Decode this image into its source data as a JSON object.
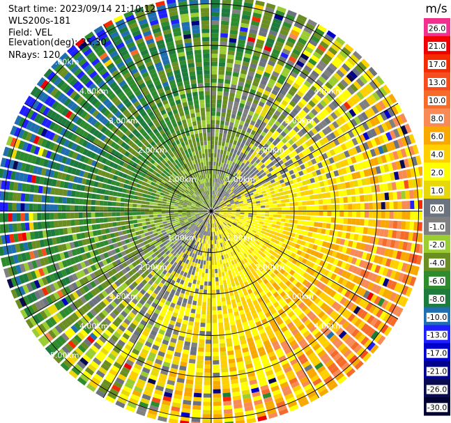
{
  "info": {
    "start_time": "Start time: 2023/09/14 21:10:12",
    "instrument": "WLS200s-181",
    "field": "Field: VEL",
    "elevation": "Elevation(deg): 35.30",
    "nrays": "NRays: 120"
  },
  "chart_data": {
    "type": "heatmap",
    "subtype": "ppi-polar",
    "field": "VEL",
    "units": "m/s",
    "nrays": 120,
    "range_rings_km": [
      1.0,
      2.0,
      3.0,
      4.0,
      5.0
    ],
    "ring_labels": {
      "1": "1.00km",
      "2": "2.00km",
      "3": "3.00km",
      "4": "4.00km",
      "5": "5.00km"
    },
    "max_range_km": 5.2,
    "spokes_deg": [
      0,
      30,
      60,
      90,
      120,
      150,
      180,
      210,
      240,
      270,
      300,
      330
    ],
    "colorbar": {
      "label": "m/s",
      "ticks": [
        "26.0",
        "21.0",
        "17.0",
        "13.0",
        "10.0",
        "8.0",
        "6.0",
        "4.0",
        "2.0",
        "1.0",
        "0.0",
        "-1.0",
        "-2.0",
        "-4.0",
        "-6.0",
        "-8.0",
        "-10.0",
        "-13.0",
        "-17.0",
        "-21.0",
        "-26.0",
        "-30.0"
      ],
      "colors": [
        "#f0308e",
        "#f00000",
        "#f42a00",
        "#f54d1e",
        "#f76b2a",
        "#f78a55",
        "#f9a800",
        "#ffcf00",
        "#ffff00",
        "#e8d80a",
        "#6b7280",
        "#808080",
        "#9acd32",
        "#6b8e23",
        "#2e8b2e",
        "#1e7b3e",
        "#1f6fb0",
        "#2020ff",
        "#0000cc",
        "#00008b",
        "#0a0a50",
        "#000033"
      ]
    }
  }
}
